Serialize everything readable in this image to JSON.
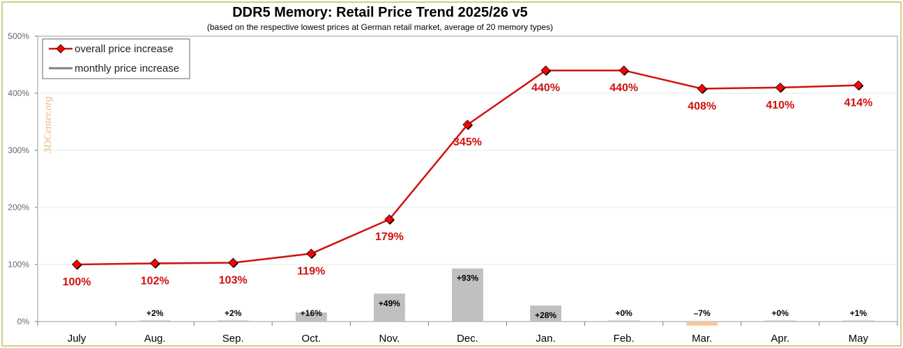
{
  "chart_data": {
    "type": "line",
    "title": "DDR5 Memory: Retail Price Trend 2025/26 v5",
    "subtitle": "(based on the respective lowest prices at German retail market, average of 20 memory types)",
    "watermark": "3DCenter.org",
    "categories": [
      "July",
      "Aug.",
      "Sep.",
      "Oct.",
      "Nov.",
      "Dec.",
      "Jan.",
      "Feb.",
      "Mar.",
      "Apr.",
      "May"
    ],
    "ylim": [
      0,
      500
    ],
    "yticks": [
      0,
      100,
      200,
      300,
      400,
      500
    ],
    "ytick_labels": [
      "0%",
      "100%",
      "200%",
      "300%",
      "400%",
      "500%"
    ],
    "grid": true,
    "legend_position": "top-left",
    "series": [
      {
        "name": "overall price increase",
        "kind": "line",
        "color": "#d01010",
        "marker_color": "#ff0000",
        "values": [
          100,
          102,
          103,
          119,
          179,
          345,
          440,
          440,
          408,
          410,
          414
        ],
        "labels": [
          "100%",
          "102%",
          "103%",
          "119%",
          "179%",
          "345%",
          "440%",
          "440%",
          "408%",
          "410%",
          "414%"
        ]
      },
      {
        "name": "monthly price increase",
        "kind": "bar",
        "color": "#c0c0c0",
        "negative_color": "#f5c59a",
        "values": [
          null,
          2,
          2,
          16,
          49,
          93,
          28,
          0,
          -7,
          0,
          1
        ],
        "labels": [
          "",
          "+2%",
          "+2%",
          "+16%",
          "+49%",
          "+93%",
          "+28%",
          "+0%",
          "–7%",
          "+0%",
          "+1%"
        ]
      }
    ]
  }
}
